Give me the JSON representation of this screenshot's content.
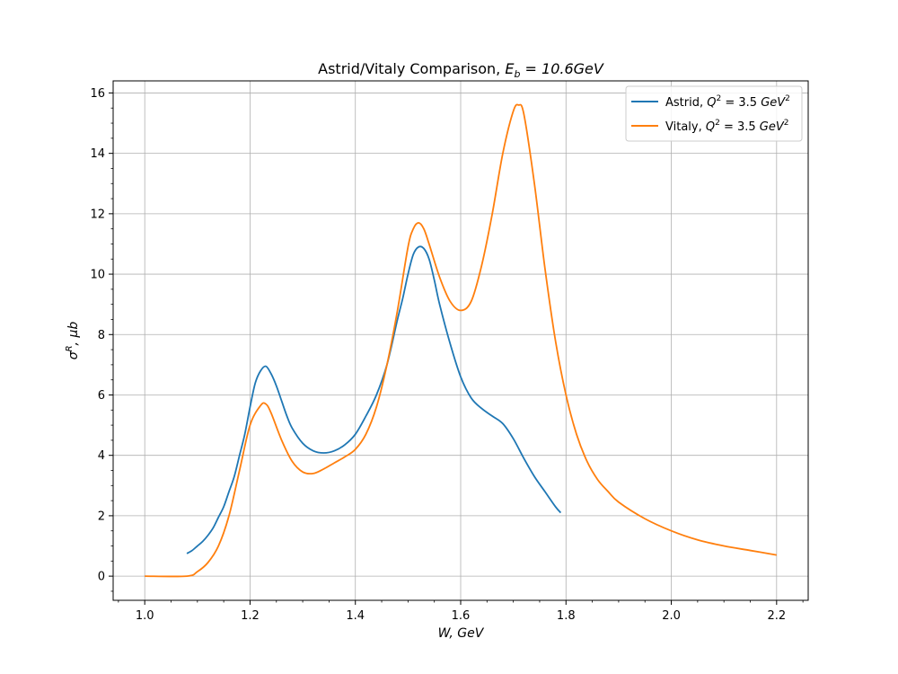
{
  "chart_data": {
    "type": "line",
    "title_main": "Astrid/Vitaly Comparison, ",
    "title_math": "E",
    "title_sub": "b",
    "title_rest": " = 10.6GeV",
    "xlabel": "W, GeV",
    "ylabel": "σR, μb",
    "ylabel_base": "σ",
    "ylabel_sup": "R",
    "ylabel_rest": ", μb",
    "xlim": [
      0.94,
      2.26
    ],
    "ylim": [
      -0.8,
      16.4
    ],
    "x_ticks": [
      1.0,
      1.2,
      1.4,
      1.6,
      1.8,
      2.0,
      2.2
    ],
    "x_tick_labels": [
      "1.0",
      "1.2",
      "1.4",
      "1.6",
      "1.8",
      "2.0",
      "2.2"
    ],
    "y_ticks": [
      0,
      2,
      4,
      6,
      8,
      10,
      12,
      14,
      16
    ],
    "y_tick_labels": [
      "0",
      "2",
      "4",
      "6",
      "8",
      "10",
      "12",
      "14",
      "16"
    ],
    "grid": true,
    "legend_position": "top-right",
    "series": [
      {
        "name": "Astrid, Q2 = 3.5 GeV2",
        "legend_prefix": "Astrid, ",
        "color": "#1f77b4",
        "x": [
          1.08,
          1.09,
          1.1,
          1.11,
          1.12,
          1.13,
          1.14,
          1.15,
          1.16,
          1.17,
          1.18,
          1.19,
          1.2,
          1.21,
          1.22,
          1.23,
          1.24,
          1.25,
          1.26,
          1.27,
          1.28,
          1.3,
          1.32,
          1.34,
          1.36,
          1.38,
          1.4,
          1.42,
          1.44,
          1.46,
          1.48,
          1.49,
          1.5,
          1.51,
          1.52,
          1.53,
          1.54,
          1.55,
          1.56,
          1.58,
          1.6,
          1.62,
          1.64,
          1.66,
          1.68,
          1.7,
          1.72,
          1.74,
          1.76,
          1.78,
          1.79
        ],
        "y": [
          0.75,
          0.85,
          1.0,
          1.15,
          1.35,
          1.6,
          1.95,
          2.3,
          2.8,
          3.3,
          4.0,
          4.7,
          5.6,
          6.4,
          6.8,
          6.95,
          6.7,
          6.3,
          5.8,
          5.3,
          4.9,
          4.4,
          4.15,
          4.08,
          4.15,
          4.35,
          4.7,
          5.3,
          6.0,
          7.0,
          8.5,
          9.2,
          10.0,
          10.65,
          10.9,
          10.85,
          10.5,
          9.8,
          9.0,
          7.7,
          6.6,
          5.9,
          5.55,
          5.3,
          5.05,
          4.55,
          3.9,
          3.3,
          2.8,
          2.3,
          2.1
        ]
      },
      {
        "name": "Vitaly, Q2 = 3.5 GeV2",
        "legend_prefix": "Vitaly, ",
        "color": "#ff7f0e",
        "x": [
          1.0,
          1.08,
          1.1,
          1.12,
          1.14,
          1.16,
          1.18,
          1.2,
          1.22,
          1.23,
          1.24,
          1.26,
          1.28,
          1.3,
          1.32,
          1.34,
          1.36,
          1.38,
          1.4,
          1.42,
          1.44,
          1.46,
          1.48,
          1.5,
          1.51,
          1.52,
          1.53,
          1.54,
          1.56,
          1.58,
          1.6,
          1.62,
          1.64,
          1.66,
          1.68,
          1.7,
          1.71,
          1.72,
          1.74,
          1.76,
          1.78,
          1.8,
          1.82,
          1.84,
          1.86,
          1.88,
          1.9,
          1.95,
          2.0,
          2.05,
          2.1,
          2.15,
          2.2
        ],
        "y": [
          0.0,
          0.0,
          0.15,
          0.45,
          1.0,
          2.0,
          3.5,
          5.0,
          5.65,
          5.7,
          5.4,
          4.5,
          3.8,
          3.45,
          3.4,
          3.55,
          3.75,
          3.95,
          4.2,
          4.7,
          5.6,
          7.0,
          8.8,
          10.9,
          11.5,
          11.7,
          11.5,
          11.0,
          9.9,
          9.1,
          8.8,
          9.1,
          10.3,
          12.0,
          14.0,
          15.4,
          15.6,
          15.3,
          13.0,
          10.2,
          7.8,
          6.0,
          4.7,
          3.8,
          3.2,
          2.8,
          2.45,
          1.9,
          1.5,
          1.2,
          1.0,
          0.85,
          0.7
        ]
      }
    ]
  }
}
